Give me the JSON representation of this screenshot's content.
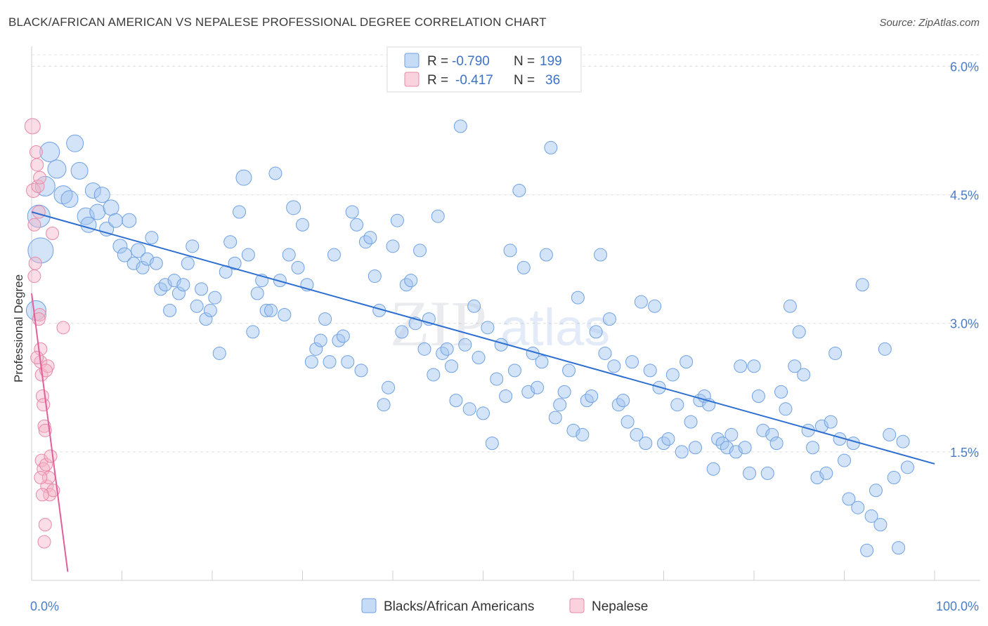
{
  "title": "BLACK/AFRICAN AMERICAN VS NEPALESE PROFESSIONAL DEGREE CORRELATION CHART",
  "source": "Source: ZipAtlas.com",
  "watermark": {
    "zip": "ZIP",
    "atlas": "atlas"
  },
  "colors": {
    "blue": "#6fa1e3",
    "blue_fill": "rgba(160,195,240,0.45)",
    "blue_line": "#2d6fd0",
    "pink": "#e888a8",
    "pink_fill": "rgba(245,180,200,0.45)",
    "pink_line": "#e0609a",
    "tick_text": "#4a7cc8"
  },
  "stats_legend": {
    "rows": [
      {
        "r_label": "R =",
        "r_value": "-0.790",
        "n_label": "N =",
        "n_value": "199"
      },
      {
        "r_label": "R =",
        "r_value": "-0.417",
        "n_label": "N =",
        "n_value": "36"
      }
    ]
  },
  "chart_data": {
    "type": "scatter",
    "title": "BLACK/AFRICAN AMERICAN VS NEPALESE PROFESSIONAL DEGREE CORRELATION CHART",
    "xlabel": "",
    "ylabel": "Professional Degree",
    "xlim": [
      0,
      100
    ],
    "ylim": [
      0,
      6.2
    ],
    "x_tick_labels": [
      "0.0%",
      "100.0%"
    ],
    "y_ticks": [
      1.5,
      3.0,
      4.5,
      6.0
    ],
    "y_tick_labels": [
      "1.5%",
      "3.0%",
      "4.5%",
      "6.0%"
    ],
    "legend": [
      "Blacks/African Americans",
      "Nepalese"
    ],
    "series": [
      {
        "name": "Blacks/African Americans",
        "trend": {
          "x0": 0,
          "y0": 4.3,
          "x1": 100,
          "y1": 1.36
        },
        "points": [
          [
            0.5,
            3.15,
            14
          ],
          [
            0.8,
            4.25,
            16
          ],
          [
            1.0,
            3.85,
            18
          ],
          [
            1.5,
            4.6,
            14
          ],
          [
            2.0,
            5.0,
            14
          ],
          [
            2.8,
            4.8,
            13
          ],
          [
            3.5,
            4.5,
            13
          ],
          [
            4.2,
            4.45,
            12
          ],
          [
            4.8,
            5.1,
            12
          ],
          [
            5.3,
            4.78,
            12
          ],
          [
            6.0,
            4.25,
            12
          ],
          [
            6.3,
            4.15,
            11
          ],
          [
            6.8,
            4.55,
            11
          ],
          [
            7.3,
            4.3,
            11
          ],
          [
            7.8,
            4.5,
            11
          ],
          [
            8.3,
            4.1,
            10
          ],
          [
            8.8,
            4.35,
            11
          ],
          [
            9.3,
            4.2,
            10
          ],
          [
            9.8,
            3.9,
            10
          ],
          [
            10.3,
            3.8,
            10
          ],
          [
            10.8,
            4.2,
            10
          ],
          [
            11.3,
            3.7,
            9
          ],
          [
            11.8,
            3.85,
            10
          ],
          [
            12.3,
            3.65,
            9
          ],
          [
            12.8,
            3.75,
            9
          ],
          [
            13.3,
            4.0,
            9
          ],
          [
            13.8,
            3.7,
            9
          ],
          [
            14.3,
            3.4,
            9
          ],
          [
            14.8,
            3.45,
            9
          ],
          [
            15.3,
            3.15,
            9
          ],
          [
            15.8,
            3.5,
            9
          ],
          [
            16.3,
            3.35,
            9
          ],
          [
            16.8,
            3.45,
            9
          ],
          [
            17.3,
            3.7,
            9
          ],
          [
            17.8,
            3.9,
            9
          ],
          [
            18.3,
            3.2,
            9
          ],
          [
            18.8,
            3.4,
            9
          ],
          [
            19.3,
            3.05,
            9
          ],
          [
            19.8,
            3.15,
            9
          ],
          [
            20.3,
            3.3,
            9
          ],
          [
            20.8,
            2.65,
            9
          ],
          [
            21.5,
            3.6,
            9
          ],
          [
            22.0,
            3.95,
            9
          ],
          [
            22.5,
            3.7,
            9
          ],
          [
            23.0,
            4.3,
            9
          ],
          [
            23.5,
            4.7,
            11
          ],
          [
            24.0,
            3.8,
            9
          ],
          [
            24.5,
            2.9,
            9
          ],
          [
            25.0,
            3.35,
            9
          ],
          [
            25.5,
            3.5,
            9
          ],
          [
            26.0,
            3.15,
            9
          ],
          [
            26.5,
            3.15,
            9
          ],
          [
            27.0,
            4.75,
            9
          ],
          [
            27.5,
            3.5,
            9
          ],
          [
            28.0,
            3.1,
            9
          ],
          [
            28.5,
            3.8,
            9
          ],
          [
            29.0,
            4.35,
            10
          ],
          [
            29.5,
            3.65,
            9
          ],
          [
            30.0,
            4.15,
            9
          ],
          [
            30.5,
            3.45,
            9
          ],
          [
            31.0,
            2.55,
            9
          ],
          [
            31.5,
            2.7,
            9
          ],
          [
            32.0,
            2.8,
            9
          ],
          [
            32.5,
            3.05,
            9
          ],
          [
            33.0,
            2.55,
            9
          ],
          [
            33.5,
            3.8,
            9
          ],
          [
            34.0,
            2.8,
            9
          ],
          [
            34.5,
            2.85,
            9
          ],
          [
            35.0,
            2.55,
            9
          ],
          [
            35.5,
            4.3,
            9
          ],
          [
            36.0,
            4.15,
            9
          ],
          [
            36.5,
            2.45,
            9
          ],
          [
            37.0,
            3.95,
            9
          ],
          [
            37.5,
            4.0,
            9
          ],
          [
            38.0,
            3.55,
            9
          ],
          [
            38.5,
            3.15,
            9
          ],
          [
            39.0,
            2.05,
            9
          ],
          [
            39.5,
            2.25,
            9
          ],
          [
            40.0,
            3.9,
            9
          ],
          [
            40.5,
            4.2,
            9
          ],
          [
            41.0,
            2.9,
            9
          ],
          [
            41.5,
            3.45,
            9
          ],
          [
            42.0,
            3.5,
            9
          ],
          [
            42.5,
            3.0,
            9
          ],
          [
            43.0,
            3.85,
            9
          ],
          [
            43.5,
            2.7,
            9
          ],
          [
            44.0,
            3.05,
            9
          ],
          [
            44.5,
            2.4,
            9
          ],
          [
            45.0,
            4.25,
            9
          ],
          [
            45.5,
            2.65,
            9
          ],
          [
            46.0,
            2.7,
            9
          ],
          [
            46.5,
            2.5,
            9
          ],
          [
            47.0,
            2.1,
            9
          ],
          [
            47.5,
            5.3,
            9
          ],
          [
            48.0,
            2.75,
            9
          ],
          [
            48.5,
            2.0,
            9
          ],
          [
            49.0,
            3.2,
            9
          ],
          [
            49.5,
            2.6,
            9
          ],
          [
            50.0,
            1.95,
            9
          ],
          [
            50.5,
            2.95,
            9
          ],
          [
            51.0,
            1.6,
            9
          ],
          [
            51.5,
            2.35,
            9
          ],
          [
            52.0,
            2.75,
            9
          ],
          [
            52.5,
            2.15,
            9
          ],
          [
            53.0,
            3.85,
            9
          ],
          [
            53.5,
            2.45,
            9
          ],
          [
            54.0,
            4.55,
            9
          ],
          [
            54.5,
            3.65,
            9
          ],
          [
            55.0,
            2.2,
            9
          ],
          [
            55.5,
            2.65,
            9
          ],
          [
            56.0,
            2.25,
            9
          ],
          [
            56.5,
            2.55,
            9
          ],
          [
            57.0,
            3.8,
            9
          ],
          [
            57.5,
            5.05,
            9
          ],
          [
            58.0,
            1.9,
            9
          ],
          [
            58.5,
            2.05,
            9
          ],
          [
            59.0,
            2.2,
            9
          ],
          [
            59.5,
            2.45,
            9
          ],
          [
            60.0,
            1.75,
            9
          ],
          [
            60.5,
            3.3,
            9
          ],
          [
            61.0,
            1.7,
            9
          ],
          [
            61.5,
            2.1,
            9
          ],
          [
            62.0,
            2.15,
            9
          ],
          [
            62.5,
            2.9,
            9
          ],
          [
            63.0,
            3.8,
            9
          ],
          [
            63.5,
            2.65,
            9
          ],
          [
            64.0,
            3.05,
            9
          ],
          [
            64.5,
            2.5,
            9
          ],
          [
            65.0,
            2.05,
            9
          ],
          [
            65.5,
            2.1,
            9
          ],
          [
            66.0,
            1.85,
            9
          ],
          [
            66.5,
            2.55,
            9
          ],
          [
            67.0,
            1.7,
            9
          ],
          [
            67.5,
            3.25,
            9
          ],
          [
            68.0,
            1.6,
            9
          ],
          [
            68.5,
            2.45,
            9
          ],
          [
            69.0,
            3.2,
            9
          ],
          [
            69.5,
            2.25,
            9
          ],
          [
            70.0,
            1.6,
            9
          ],
          [
            70.5,
            1.65,
            9
          ],
          [
            71.0,
            2.4,
            9
          ],
          [
            71.5,
            2.05,
            9
          ],
          [
            72.0,
            1.5,
            9
          ],
          [
            72.5,
            2.55,
            9
          ],
          [
            73.0,
            1.85,
            9
          ],
          [
            73.5,
            1.55,
            9
          ],
          [
            74.0,
            2.1,
            9
          ],
          [
            74.5,
            2.15,
            9
          ],
          [
            75.0,
            2.05,
            9
          ],
          [
            75.5,
            1.3,
            9
          ],
          [
            76.0,
            1.65,
            9
          ],
          [
            76.5,
            1.6,
            9
          ],
          [
            77.0,
            1.55,
            9
          ],
          [
            77.5,
            1.7,
            9
          ],
          [
            78.0,
            1.5,
            9
          ],
          [
            78.5,
            2.5,
            9
          ],
          [
            79.0,
            1.55,
            9
          ],
          [
            79.5,
            1.25,
            9
          ],
          [
            80.0,
            2.5,
            9
          ],
          [
            80.5,
            2.15,
            9
          ],
          [
            81.0,
            1.75,
            9
          ],
          [
            81.5,
            1.25,
            9
          ],
          [
            82.0,
            1.7,
            9
          ],
          [
            82.5,
            1.6,
            9
          ],
          [
            83.0,
            2.2,
            9
          ],
          [
            83.5,
            2.0,
            9
          ],
          [
            84.0,
            3.2,
            9
          ],
          [
            84.5,
            2.5,
            9
          ],
          [
            85.0,
            2.9,
            9
          ],
          [
            85.5,
            2.4,
            9
          ],
          [
            86.0,
            1.75,
            9
          ],
          [
            86.5,
            1.55,
            9
          ],
          [
            87.0,
            1.2,
            9
          ],
          [
            87.5,
            1.8,
            9
          ],
          [
            88.0,
            1.25,
            9
          ],
          [
            88.5,
            1.85,
            9
          ],
          [
            89.0,
            2.65,
            9
          ],
          [
            89.5,
            1.65,
            9
          ],
          [
            90.0,
            1.4,
            9
          ],
          [
            90.5,
            0.95,
            9
          ],
          [
            91.0,
            1.6,
            9
          ],
          [
            91.5,
            0.85,
            9
          ],
          [
            92.0,
            3.45,
            9
          ],
          [
            92.5,
            0.35,
            9
          ],
          [
            93.0,
            0.75,
            9
          ],
          [
            93.5,
            1.05,
            9
          ],
          [
            94.0,
            0.65,
            9
          ],
          [
            94.5,
            2.7,
            9
          ],
          [
            95.0,
            1.7,
            9
          ],
          [
            95.5,
            1.2,
            9
          ],
          [
            96.0,
            0.38,
            9
          ],
          [
            96.5,
            1.62,
            9
          ],
          [
            97.0,
            1.32,
            9
          ]
        ]
      },
      {
        "name": "Nepalese",
        "trend": {
          "x0": 0,
          "y0": 3.35,
          "x1": 4.0,
          "y1": 0.1
        },
        "points": [
          [
            0.1,
            5.3,
            11
          ],
          [
            0.2,
            4.55,
            10
          ],
          [
            0.3,
            4.15,
            9
          ],
          [
            0.3,
            3.55,
            9
          ],
          [
            0.4,
            3.7,
            9
          ],
          [
            0.5,
            5.0,
            9
          ],
          [
            0.6,
            4.85,
            9
          ],
          [
            0.7,
            4.6,
            9
          ],
          [
            0.8,
            4.3,
            9
          ],
          [
            0.9,
            3.1,
            9
          ],
          [
            1.0,
            2.7,
            9
          ],
          [
            1.0,
            2.55,
            9
          ],
          [
            1.1,
            2.4,
            9
          ],
          [
            1.2,
            2.15,
            9
          ],
          [
            1.3,
            2.05,
            9
          ],
          [
            1.4,
            1.8,
            9
          ],
          [
            1.5,
            1.75,
            9
          ],
          [
            1.1,
            1.4,
            9
          ],
          [
            1.3,
            1.3,
            9
          ],
          [
            1.6,
            1.35,
            9
          ],
          [
            1.7,
            1.1,
            9
          ],
          [
            1.9,
            1.2,
            9
          ],
          [
            2.0,
            1.0,
            9
          ],
          [
            1.5,
            0.65,
            9
          ],
          [
            1.4,
            0.45,
            9
          ],
          [
            2.3,
            4.05,
            9
          ],
          [
            3.5,
            2.95,
            9
          ],
          [
            1.8,
            2.5,
            9
          ],
          [
            0.8,
            3.05,
            9
          ],
          [
            2.1,
            1.45,
            9
          ],
          [
            2.4,
            1.05,
            9
          ],
          [
            1.2,
            1.0,
            9
          ],
          [
            0.6,
            2.6,
            9
          ],
          [
            0.9,
            4.7,
            9
          ],
          [
            1.6,
            2.45,
            9
          ],
          [
            1.0,
            1.2,
            9
          ]
        ]
      }
    ]
  },
  "bottom_legend": {
    "items": [
      "Blacks/African Americans",
      "Nepalese"
    ]
  }
}
